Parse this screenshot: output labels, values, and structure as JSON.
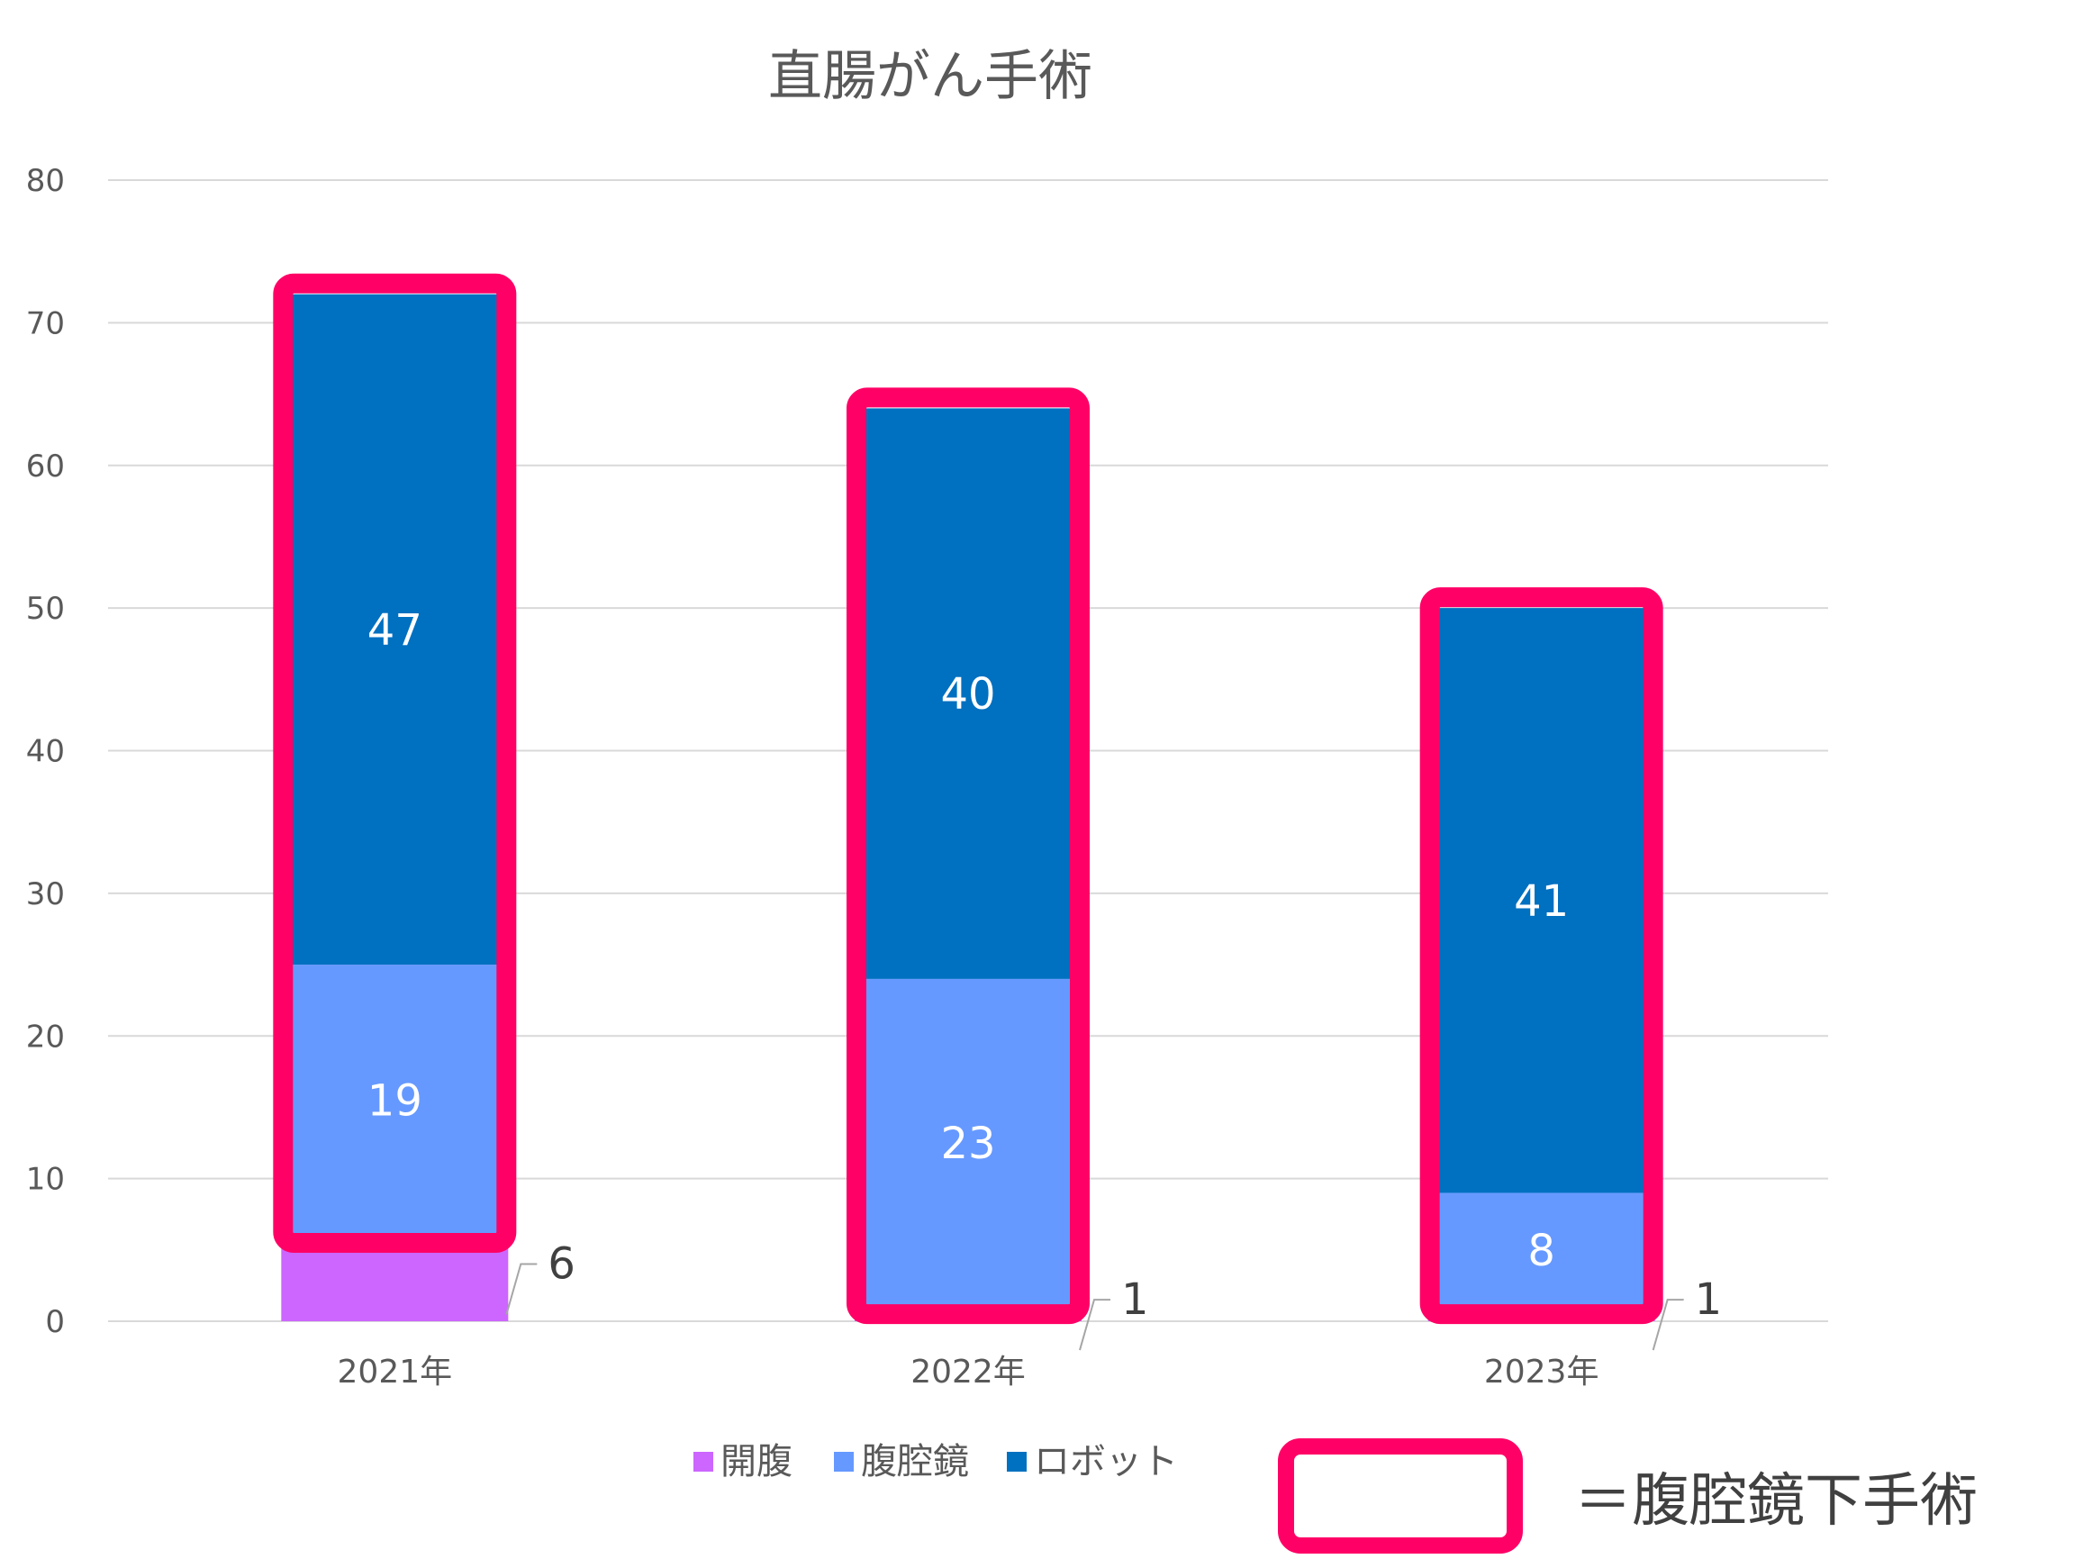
{
  "chart_data": {
    "type": "bar",
    "stacked": true,
    "title": "直腸がん手術",
    "categories": [
      "2021年",
      "2022年",
      "2023年"
    ],
    "series": [
      {
        "name": "開腹",
        "color": "#CC66FF",
        "values": [
          6,
          1,
          1
        ]
      },
      {
        "name": "腹腔鏡",
        "color": "#6699FF",
        "values": [
          19,
          23,
          8
        ]
      },
      {
        "name": "ロボット",
        "color": "#0070C0",
        "values": [
          47,
          40,
          41
        ]
      }
    ],
    "yticks": [
      "0",
      "10",
      "20",
      "30",
      "40",
      "50",
      "60",
      "70",
      "80"
    ],
    "ylim": [
      0,
      80
    ],
    "grid": true,
    "legend": "bottom",
    "highlight": {
      "color": "#FF0066",
      "series": [
        "腹腔鏡",
        "ロボット"
      ],
      "legend_text": "＝腹腔鏡下手術"
    }
  }
}
